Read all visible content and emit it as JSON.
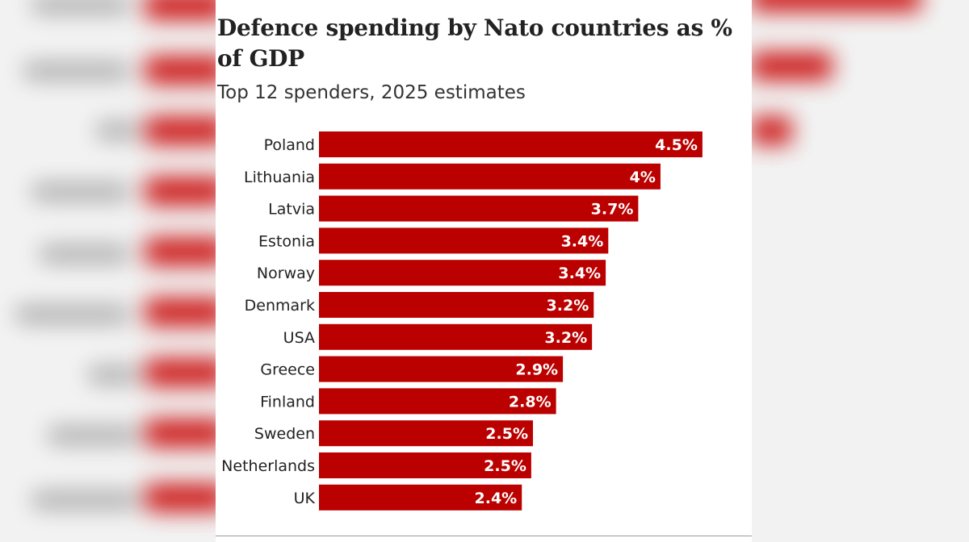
{
  "chart_data": {
    "type": "bar",
    "orientation": "horizontal",
    "title": "Defence spending by Nato countries as % of GDP",
    "subtitle": "Top 12 spenders, 2025 estimates",
    "categories": [
      "Poland",
      "Lithuania",
      "Latvia",
      "Estonia",
      "Norway",
      "Denmark",
      "USA",
      "Greece",
      "Finland",
      "Sweden",
      "Netherlands",
      "UK"
    ],
    "values": [
      4.48,
      3.99,
      3.73,
      3.38,
      3.35,
      3.21,
      3.19,
      2.85,
      2.77,
      2.5,
      2.48,
      2.37
    ],
    "value_labels": [
      "4.5%",
      "4%",
      "3.7%",
      "3.4%",
      "3.4%",
      "3.2%",
      "3.2%",
      "2.9%",
      "2.8%",
      "2.5%",
      "2.5%",
      "2.4%"
    ],
    "xlabel": "",
    "ylabel": "",
    "xlim": [
      0,
      4.5
    ],
    "grid": false,
    "legend": "none",
    "colors": {
      "bar": "#bb0000",
      "bar_label": "#ffffff",
      "category_label": "#222222"
    }
  }
}
